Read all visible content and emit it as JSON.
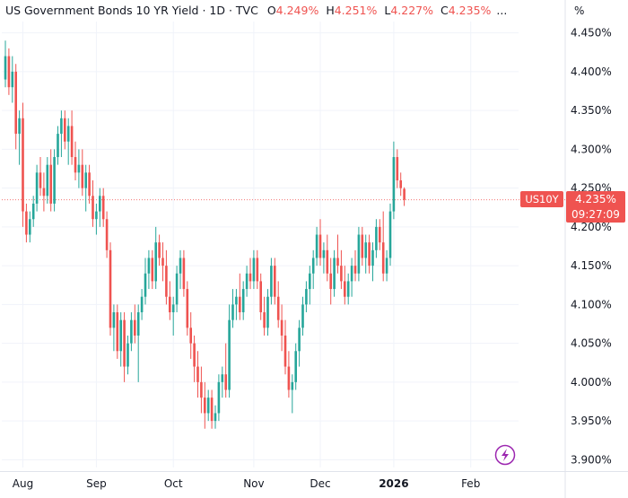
{
  "header": {
    "title": "US Government Bonds 10 YR Yield · 1D · TVC",
    "open_label": "O",
    "open_value": "4.249%",
    "high_label": "H",
    "high_value": "4.251%",
    "low_label": "L",
    "low_value": "4.227%",
    "close_label": "C",
    "close_value": "4.235%",
    "ellipsis": "..."
  },
  "axis": {
    "unit_label": "%"
  },
  "price_badge": {
    "symbol": "US10Y",
    "price": "4.235%",
    "countdown": "09:27:09"
  },
  "colors": {
    "up": "#26a69a",
    "down": "#ef5350",
    "grid": "#f0f3fa",
    "axis_text": "#131722",
    "accent": "#9c27b0"
  },
  "icons": {
    "flash": "lightning-icon"
  },
  "chart_data": {
    "type": "candlestick",
    "ylim": [
      3.89,
      4.46
    ],
    "y_ticks": [
      "4.450%",
      "4.400%",
      "4.350%",
      "4.300%",
      "4.250%",
      "4.200%",
      "4.150%",
      "4.100%",
      "4.050%",
      "4.000%",
      "3.950%",
      "3.900%"
    ],
    "y_tick_values": [
      4.45,
      4.4,
      4.35,
      4.3,
      4.25,
      4.2,
      4.15,
      4.1,
      4.05,
      4.0,
      3.95,
      3.9
    ],
    "x_ticks": [
      {
        "label": "Aug",
        "index": 5,
        "bold": false
      },
      {
        "label": "Sep",
        "index": 26,
        "bold": false
      },
      {
        "label": "Oct",
        "index": 48,
        "bold": false
      },
      {
        "label": "Nov",
        "index": 71,
        "bold": false
      },
      {
        "label": "Dec",
        "index": 90,
        "bold": false
      },
      {
        "label": "2026",
        "index": 111,
        "bold": true
      },
      {
        "label": "Feb",
        "index": 133,
        "bold": false
      }
    ],
    "last_price": 4.235,
    "candles": [
      [
        4.39,
        4.44,
        4.38,
        4.42
      ],
      [
        4.42,
        4.43,
        4.37,
        4.38
      ],
      [
        4.38,
        4.42,
        4.36,
        4.4
      ],
      [
        4.4,
        4.41,
        4.3,
        4.32
      ],
      [
        4.32,
        4.35,
        4.28,
        4.34
      ],
      [
        4.34,
        4.36,
        4.2,
        4.22
      ],
      [
        4.22,
        4.23,
        4.18,
        4.19
      ],
      [
        4.19,
        4.22,
        4.18,
        4.21
      ],
      [
        4.21,
        4.24,
        4.2,
        4.23
      ],
      [
        4.23,
        4.28,
        4.22,
        4.27
      ],
      [
        4.27,
        4.29,
        4.24,
        4.25
      ],
      [
        4.25,
        4.27,
        4.22,
        4.24
      ],
      [
        4.24,
        4.29,
        4.23,
        4.28
      ],
      [
        4.28,
        4.3,
        4.22,
        4.23
      ],
      [
        4.23,
        4.3,
        4.22,
        4.29
      ],
      [
        4.29,
        4.33,
        4.28,
        4.32
      ],
      [
        4.32,
        4.35,
        4.29,
        4.34
      ],
      [
        4.34,
        4.35,
        4.3,
        4.31
      ],
      [
        4.31,
        4.34,
        4.28,
        4.33
      ],
      [
        4.33,
        4.35,
        4.28,
        4.29
      ],
      [
        4.29,
        4.31,
        4.26,
        4.27
      ],
      [
        4.27,
        4.3,
        4.25,
        4.28
      ],
      [
        4.28,
        4.3,
        4.24,
        4.25
      ],
      [
        4.25,
        4.28,
        4.22,
        4.27
      ],
      [
        4.27,
        4.28,
        4.23,
        4.24
      ],
      [
        4.24,
        4.26,
        4.2,
        4.21
      ],
      [
        4.21,
        4.23,
        4.19,
        4.22
      ],
      [
        4.22,
        4.25,
        4.2,
        4.24
      ],
      [
        4.24,
        4.25,
        4.2,
        4.21
      ],
      [
        4.21,
        4.22,
        4.16,
        4.17
      ],
      [
        4.17,
        4.18,
        4.06,
        4.07
      ],
      [
        4.07,
        4.1,
        4.04,
        4.09
      ],
      [
        4.09,
        4.1,
        4.03,
        4.04
      ],
      [
        4.04,
        4.09,
        4.02,
        4.08
      ],
      [
        4.08,
        4.09,
        4.0,
        4.02
      ],
      [
        4.02,
        4.06,
        4.01,
        4.05
      ],
      [
        4.05,
        4.09,
        4.04,
        4.08
      ],
      [
        4.08,
        4.1,
        4.05,
        4.06
      ],
      [
        4.06,
        4.1,
        4.0,
        4.09
      ],
      [
        4.09,
        4.12,
        4.08,
        4.11
      ],
      [
        4.11,
        4.16,
        4.1,
        4.14
      ],
      [
        4.14,
        4.17,
        4.12,
        4.16
      ],
      [
        4.16,
        4.17,
        4.12,
        4.13
      ],
      [
        4.13,
        4.2,
        4.12,
        4.18
      ],
      [
        4.18,
        4.19,
        4.15,
        4.16
      ],
      [
        4.16,
        4.18,
        4.13,
        4.15
      ],
      [
        4.15,
        4.17,
        4.1,
        4.11
      ],
      [
        4.11,
        4.13,
        4.08,
        4.09
      ],
      [
        4.09,
        4.11,
        4.06,
        4.1
      ],
      [
        4.1,
        4.15,
        4.09,
        4.14
      ],
      [
        4.14,
        4.17,
        4.12,
        4.16
      ],
      [
        4.16,
        4.17,
        4.11,
        4.12
      ],
      [
        4.12,
        4.13,
        4.06,
        4.07
      ],
      [
        4.07,
        4.09,
        4.03,
        4.05
      ],
      [
        4.05,
        4.06,
        4.0,
        4.02
      ],
      [
        4.02,
        4.04,
        3.98,
        4.0
      ],
      [
        4.0,
        4.02,
        3.96,
        3.98
      ],
      [
        3.98,
        4.0,
        3.94,
        3.96
      ],
      [
        3.96,
        3.99,
        3.95,
        3.98
      ],
      [
        3.98,
        3.99,
        3.94,
        3.95
      ],
      [
        3.95,
        3.97,
        3.94,
        3.96
      ],
      [
        3.96,
        4.01,
        3.95,
        4.0
      ],
      [
        4.0,
        4.02,
        3.98,
        4.01
      ],
      [
        4.01,
        4.05,
        3.98,
        3.99
      ],
      [
        3.99,
        4.1,
        3.98,
        4.08
      ],
      [
        4.08,
        4.12,
        4.07,
        4.1
      ],
      [
        4.1,
        4.12,
        4.08,
        4.11
      ],
      [
        4.11,
        4.14,
        4.08,
        4.09
      ],
      [
        4.09,
        4.13,
        4.08,
        4.12
      ],
      [
        4.12,
        4.15,
        4.11,
        4.14
      ],
      [
        4.14,
        4.16,
        4.12,
        4.13
      ],
      [
        4.13,
        4.17,
        4.12,
        4.16
      ],
      [
        4.16,
        4.17,
        4.12,
        4.13
      ],
      [
        4.13,
        4.14,
        4.08,
        4.09
      ],
      [
        4.09,
        4.11,
        4.06,
        4.07
      ],
      [
        4.07,
        4.12,
        4.06,
        4.11
      ],
      [
        4.11,
        4.16,
        4.1,
        4.15
      ],
      [
        4.15,
        4.16,
        4.1,
        4.11
      ],
      [
        4.11,
        4.13,
        4.07,
        4.08
      ],
      [
        4.08,
        4.1,
        4.04,
        4.06
      ],
      [
        4.06,
        4.08,
        4.01,
        4.02
      ],
      [
        4.02,
        4.04,
        3.98,
        3.99
      ],
      [
        3.99,
        4.01,
        3.96,
        4.0
      ],
      [
        4.0,
        4.05,
        3.99,
        4.04
      ],
      [
        4.04,
        4.08,
        4.02,
        4.07
      ],
      [
        4.07,
        4.11,
        4.06,
        4.1
      ],
      [
        4.1,
        4.13,
        4.09,
        4.12
      ],
      [
        4.12,
        4.15,
        4.1,
        4.14
      ],
      [
        4.14,
        4.17,
        4.12,
        4.16
      ],
      [
        4.16,
        4.2,
        4.15,
        4.19
      ],
      [
        4.19,
        4.21,
        4.15,
        4.16
      ],
      [
        4.16,
        4.18,
        4.14,
        4.17
      ],
      [
        4.17,
        4.19,
        4.13,
        4.14
      ],
      [
        4.14,
        4.16,
        4.1,
        4.12
      ],
      [
        4.12,
        4.17,
        4.11,
        4.16
      ],
      [
        4.16,
        4.19,
        4.14,
        4.15
      ],
      [
        4.15,
        4.17,
        4.12,
        4.13
      ],
      [
        4.13,
        4.15,
        4.1,
        4.11
      ],
      [
        4.11,
        4.14,
        4.1,
        4.13
      ],
      [
        4.13,
        4.16,
        4.11,
        4.15
      ],
      [
        4.15,
        4.17,
        4.13,
        4.14
      ],
      [
        4.14,
        4.2,
        4.13,
        4.19
      ],
      [
        4.19,
        4.2,
        4.15,
        4.16
      ],
      [
        4.16,
        4.19,
        4.14,
        4.18
      ],
      [
        4.18,
        4.19,
        4.14,
        4.15
      ],
      [
        4.15,
        4.18,
        4.13,
        4.17
      ],
      [
        4.17,
        4.21,
        4.16,
        4.2
      ],
      [
        4.2,
        4.21,
        4.17,
        4.18
      ],
      [
        4.18,
        4.22,
        4.13,
        4.14
      ],
      [
        4.14,
        4.17,
        4.13,
        4.16
      ],
      [
        4.16,
        4.23,
        4.15,
        4.22
      ],
      [
        4.22,
        4.31,
        4.21,
        4.29
      ],
      [
        4.29,
        4.3,
        4.25,
        4.26
      ],
      [
        4.26,
        4.27,
        4.24,
        4.25
      ],
      [
        4.249,
        4.251,
        4.227,
        4.235
      ]
    ]
  }
}
